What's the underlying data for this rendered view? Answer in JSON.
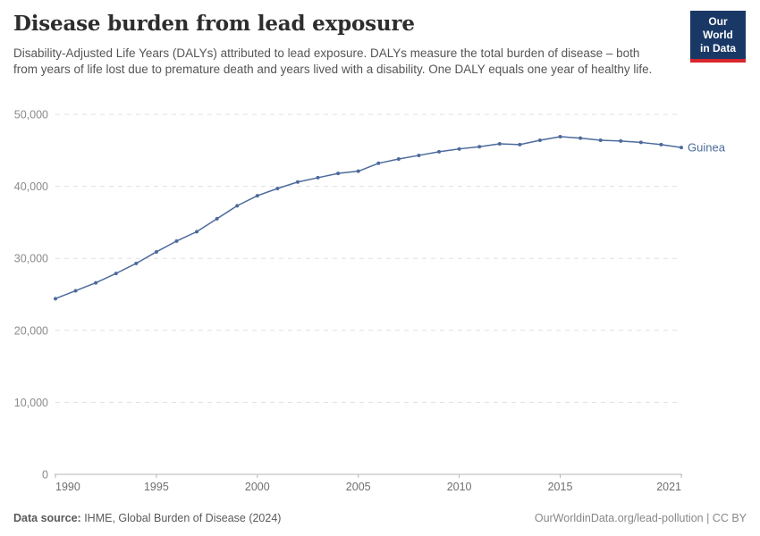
{
  "header": {
    "title": "Disease burden from lead exposure",
    "subtitle": "Disability-Adjusted Life Years (DALYs) attributed to lead exposure. DALYs measure the total burden of disease – both from years of life lost due to premature death and years lived with a disability. One DALY equals one year of healthy life.",
    "logo": {
      "line1": "Our World",
      "line2": "in Data",
      "bg_color": "#1A3866",
      "stripe_color": "#D8262C"
    }
  },
  "chart_data": {
    "type": "line",
    "title": "Disease burden from lead exposure",
    "xlabel": "",
    "ylabel": "",
    "xlim": [
      1990,
      2021
    ],
    "ylim": [
      0,
      50000
    ],
    "grid": "horizontal-dashed",
    "legend_position": "end-of-line",
    "x_ticks": [
      1990,
      1995,
      2000,
      2005,
      2010,
      2015,
      2021
    ],
    "x_tick_labels": [
      "1990",
      "1995",
      "2000",
      "2005",
      "2010",
      "2015",
      "2021"
    ],
    "y_ticks": [
      0,
      10000,
      20000,
      30000,
      40000,
      50000
    ],
    "y_tick_labels": [
      "0",
      "10,000",
      "20,000",
      "30,000",
      "40,000",
      "50,000"
    ],
    "series": [
      {
        "name": "Guinea",
        "color": "#4C6A9C",
        "x": [
          1990,
          1991,
          1992,
          1993,
          1994,
          1995,
          1996,
          1997,
          1998,
          1999,
          2000,
          2001,
          2002,
          2003,
          2004,
          2005,
          2006,
          2007,
          2008,
          2009,
          2010,
          2011,
          2012,
          2013,
          2014,
          2015,
          2016,
          2017,
          2018,
          2019,
          2020,
          2021
        ],
        "values": [
          24400,
          25500,
          26600,
          27900,
          29300,
          30900,
          32400,
          33700,
          35500,
          37300,
          38700,
          39700,
          40600,
          41200,
          41800,
          42100,
          43200,
          43800,
          44300,
          44800,
          45200,
          45500,
          45900,
          45800,
          46400,
          46900,
          46700,
          46400,
          46300,
          46100,
          45800,
          45400
        ]
      }
    ],
    "colors": {
      "gridline": "#e0e0e0",
      "axis": "#b5b5b5"
    }
  },
  "footer": {
    "source_label": "Data source:",
    "source_text": " IHME, Global Burden of Disease (2024)",
    "credit": "OurWorldinData.org/lead-pollution | CC BY"
  }
}
